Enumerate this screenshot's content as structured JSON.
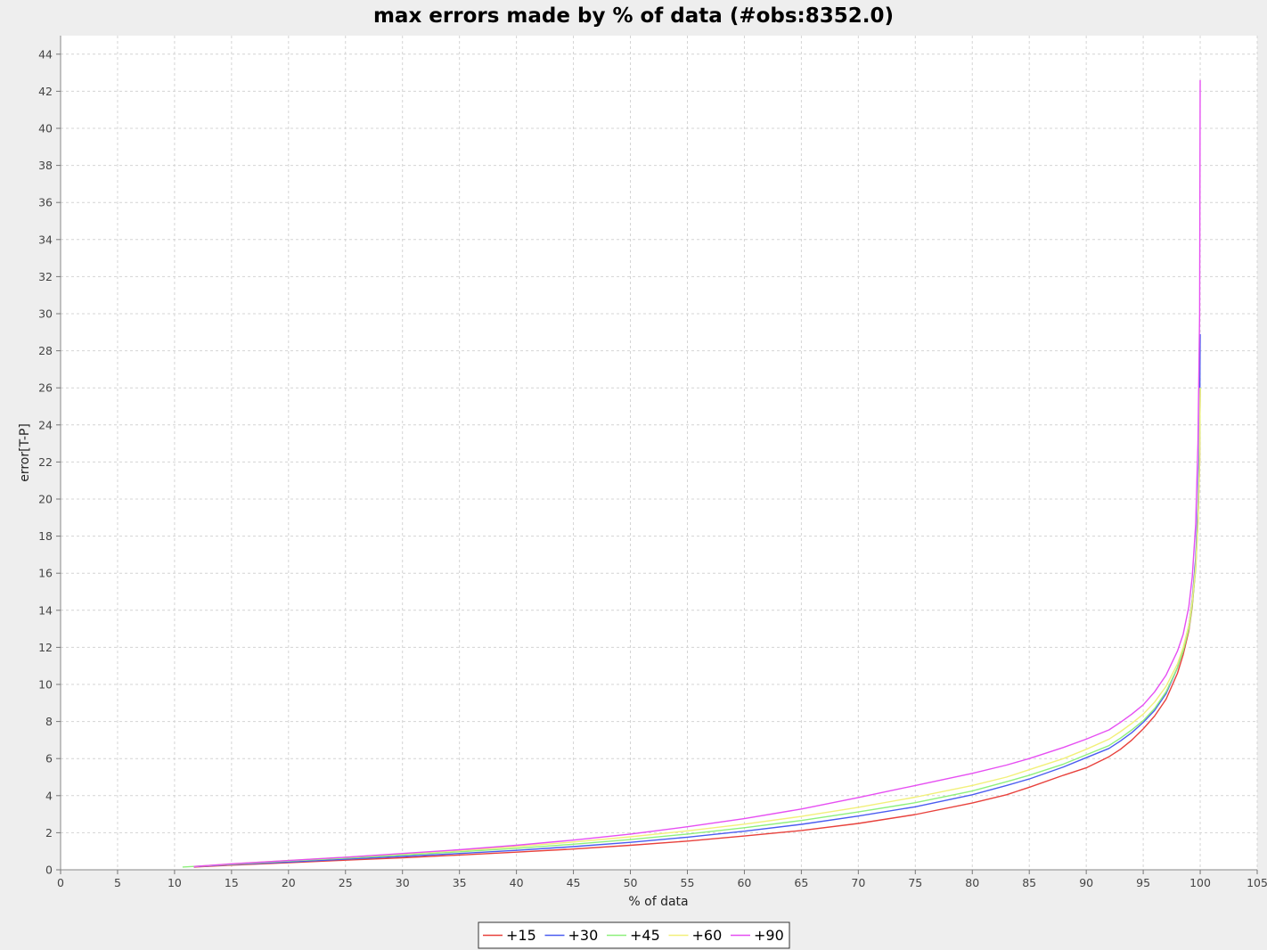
{
  "chart_data": {
    "type": "line",
    "title": "max errors made by % of data (#obs:8352.0)",
    "xlabel": "% of data",
    "ylabel": "error[T-P]",
    "xlim": [
      0,
      105
    ],
    "ylim": [
      0,
      45
    ],
    "x_ticks": [
      "0",
      "5",
      "10",
      "15",
      "20",
      "25",
      "30",
      "35",
      "40",
      "45",
      "50",
      "55",
      "60",
      "65",
      "70",
      "75",
      "80",
      "85",
      "90",
      "95",
      "100",
      "105"
    ],
    "y_ticks": [
      "0",
      "2",
      "4",
      "6",
      "8",
      "10",
      "12",
      "14",
      "16",
      "18",
      "20",
      "22",
      "24",
      "26",
      "28",
      "30",
      "32",
      "34",
      "36",
      "38",
      "40",
      "42",
      "44"
    ],
    "grid": true,
    "legend_position": "bottom-center",
    "series": [
      {
        "name": "+15",
        "color": "#e8413c",
        "x": [
          11.7,
          15,
          20,
          25,
          30,
          35,
          40,
          45,
          50,
          55,
          60,
          65,
          70,
          75,
          80,
          83,
          85,
          88,
          90,
          92,
          93,
          94,
          95,
          96,
          97,
          98,
          98.5,
          99,
          99.3,
          99.6,
          99.8,
          99.95,
          100
        ],
        "y": [
          0.15,
          0.25,
          0.38,
          0.52,
          0.65,
          0.8,
          0.95,
          1.12,
          1.32,
          1.55,
          1.82,
          2.12,
          2.5,
          2.98,
          3.6,
          4.05,
          4.45,
          5.1,
          5.5,
          6.1,
          6.5,
          7.0,
          7.6,
          8.3,
          9.2,
          10.6,
          11.6,
          12.9,
          14.2,
          16.3,
          18.8,
          22.0,
          25.9
        ]
      },
      {
        "name": "+30",
        "color": "#4a5cf0",
        "x": [
          11.7,
          15,
          20,
          25,
          30,
          35,
          40,
          45,
          50,
          55,
          60,
          65,
          70,
          75,
          80,
          83,
          85,
          88,
          90,
          92,
          93,
          94,
          95,
          96,
          97,
          98,
          98.5,
          99,
          99.3,
          99.6,
          99.8,
          99.95,
          100
        ],
        "y": [
          0.17,
          0.28,
          0.42,
          0.57,
          0.72,
          0.88,
          1.05,
          1.25,
          1.48,
          1.76,
          2.08,
          2.45,
          2.9,
          3.4,
          4.05,
          4.55,
          4.9,
          5.55,
          6.05,
          6.55,
          6.95,
          7.4,
          7.95,
          8.6,
          9.5,
          10.9,
          11.9,
          13.2,
          14.6,
          16.8,
          19.6,
          23.5,
          28.9
        ]
      },
      {
        "name": "+45",
        "color": "#8ef07c",
        "x": [
          10.7,
          15,
          20,
          25,
          30,
          35,
          40,
          45,
          50,
          55,
          60,
          65,
          70,
          75,
          80,
          83,
          85,
          88,
          90,
          92,
          93,
          94,
          95,
          96,
          97,
          98,
          98.5,
          99,
          99.3,
          99.6,
          99.8,
          99.95,
          100
        ],
        "y": [
          0.15,
          0.3,
          0.47,
          0.63,
          0.8,
          0.97,
          1.16,
          1.38,
          1.63,
          1.93,
          2.27,
          2.66,
          3.12,
          3.62,
          4.25,
          4.75,
          5.1,
          5.7,
          6.2,
          6.7,
          7.1,
          7.55,
          8.05,
          8.7,
          9.6,
          10.9,
          11.8,
          13.0,
          14.3,
          16.2,
          18.6,
          22.0,
          26.0
        ]
      },
      {
        "name": "+60",
        "color": "#f2f07a",
        "x": [
          11.7,
          15,
          20,
          25,
          30,
          35,
          40,
          45,
          50,
          55,
          60,
          65,
          70,
          75,
          80,
          83,
          85,
          88,
          90,
          92,
          93,
          94,
          95,
          96,
          97,
          98,
          98.5,
          99,
          99.3,
          99.6,
          99.8,
          99.95,
          100
        ],
        "y": [
          0.18,
          0.32,
          0.5,
          0.68,
          0.86,
          1.04,
          1.25,
          1.5,
          1.78,
          2.1,
          2.46,
          2.88,
          3.37,
          3.92,
          4.55,
          5.0,
          5.4,
          6.0,
          6.5,
          7.05,
          7.45,
          7.9,
          8.4,
          9.05,
          9.9,
          11.1,
          12.0,
          13.2,
          14.5,
          16.4,
          18.8,
          22.0,
          26.0
        ]
      },
      {
        "name": "+90",
        "color": "#e64ff2",
        "x": [
          11.7,
          15,
          20,
          25,
          30,
          35,
          40,
          45,
          50,
          55,
          60,
          65,
          70,
          75,
          80,
          83,
          85,
          88,
          90,
          92,
          93,
          94,
          95,
          96,
          97,
          98,
          98.5,
          99,
          99.3,
          99.6,
          99.8,
          99.95,
          100
        ],
        "y": [
          0.18,
          0.32,
          0.5,
          0.68,
          0.88,
          1.08,
          1.32,
          1.6,
          1.93,
          2.32,
          2.76,
          3.28,
          3.9,
          4.55,
          5.2,
          5.65,
          6.0,
          6.6,
          7.05,
          7.55,
          7.95,
          8.4,
          8.9,
          9.6,
          10.5,
          11.8,
          12.7,
          14.2,
          15.8,
          18.6,
          23.0,
          30.0,
          42.6
        ]
      }
    ]
  }
}
